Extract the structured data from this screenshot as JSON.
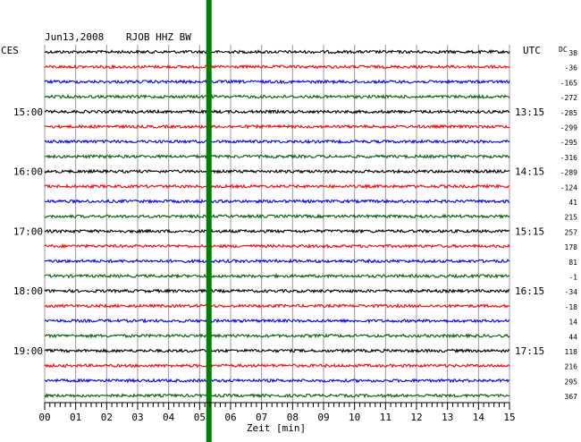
{
  "header": {
    "date": "Jun13,2008",
    "station": "RJOB HHZ BW",
    "left_zone": "CES",
    "right_zone": "UTC",
    "dc_label": "DC"
  },
  "chart_data": {
    "type": "line",
    "title": "Jun13,2008   RJOB HHZ BW",
    "xlabel": "Zeit [min]",
    "x_ticks": [
      "00",
      "01",
      "02",
      "03",
      "04",
      "05",
      "06",
      "07",
      "08",
      "09",
      "10",
      "11",
      "12",
      "13",
      "14",
      "15"
    ],
    "xlim": [
      0,
      15
    ],
    "grid": true,
    "trace_colors": [
      "#000000",
      "#ff0000",
      "#0000ff",
      "#006400"
    ],
    "left_time_labels": [
      {
        "trace": 4,
        "label": "15:00"
      },
      {
        "trace": 8,
        "label": "16:00"
      },
      {
        "trace": 12,
        "label": "17:00"
      },
      {
        "trace": 16,
        "label": "18:00"
      },
      {
        "trace": 20,
        "label": "19:00"
      }
    ],
    "right_time_labels": [
      {
        "trace": 4,
        "label": "13:15"
      },
      {
        "trace": 8,
        "label": "14:15"
      },
      {
        "trace": 12,
        "label": "15:15"
      },
      {
        "trace": 16,
        "label": "16:15"
      },
      {
        "trace": 20,
        "label": "17:15"
      }
    ],
    "dc_offsets": [
      "38",
      "-36",
      "-165",
      "-272",
      "-285",
      "-299",
      "-295",
      "-316",
      "-289",
      "-124",
      "41",
      "215",
      "257",
      "178",
      "81",
      "-1",
      "-34",
      "-18",
      "14",
      "44",
      "118",
      "216",
      "295",
      "367"
    ],
    "marker_line": {
      "minute": 5.3,
      "color": "#008000"
    }
  }
}
